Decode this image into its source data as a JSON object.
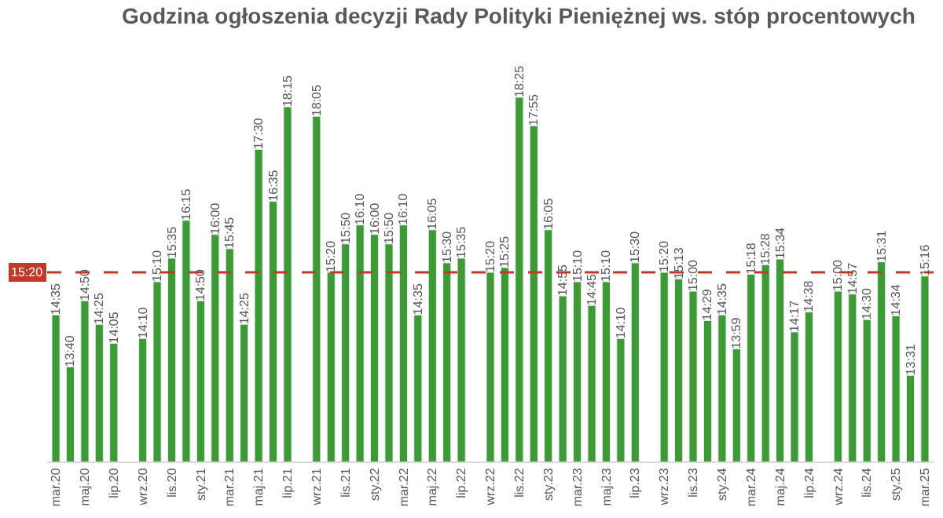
{
  "chart_data": {
    "type": "bar",
    "title": "Godzina ogłoszenia decyzji Rady Polityki Pieniężnej ws. stóp procentowych",
    "categories": [
      "mar.20",
      null,
      "maj.20",
      null,
      "lip.20",
      null,
      "wrz.20",
      null,
      "lis.20",
      null,
      "sty.21",
      null,
      "mar.21",
      null,
      "maj.21",
      null,
      "lip.21",
      null,
      "wrz.21",
      null,
      "lis.21",
      null,
      "sty.22",
      null,
      "mar.22",
      null,
      "maj.22",
      null,
      "lip.22",
      null,
      "wrz.22",
      null,
      "lis.22",
      null,
      "sty.23",
      null,
      "mar.23",
      null,
      "maj.23",
      null,
      "lip.23",
      null,
      "wrz.23",
      null,
      "lis.23",
      null,
      "sty.24",
      null,
      "mar.24",
      null,
      "maj.24",
      null,
      "lip.24",
      null,
      "wrz.24",
      null,
      "lis.24",
      null,
      "sty.25",
      null,
      "mar.25"
    ],
    "values": [
      14.583,
      13.667,
      14.833,
      14.417,
      14.083,
      null,
      14.167,
      15.167,
      15.583,
      16.25,
      14.833,
      16.0,
      15.75,
      14.417,
      17.5,
      16.583,
      18.25,
      null,
      18.083,
      15.333,
      15.833,
      16.167,
      16.0,
      15.833,
      16.167,
      14.583,
      16.083,
      15.5,
      15.583,
      null,
      15.333,
      15.417,
      18.417,
      17.917,
      16.083,
      14.917,
      15.167,
      14.75,
      15.167,
      14.167,
      15.5,
      null,
      15.333,
      15.217,
      15.0,
      14.483,
      14.583,
      13.983,
      15.3,
      15.467,
      15.567,
      14.283,
      14.633,
      null,
      15.0,
      14.95,
      14.5,
      15.517,
      14.567,
      13.517,
      15.267
    ],
    "value_labels": [
      "14:35",
      "13:40",
      "14:50",
      "14:25",
      "14:05",
      null,
      "14:10",
      "15:10",
      "15:35",
      "16:15",
      "14:50",
      "16:00",
      "15:45",
      "14:25",
      "17:30",
      "16:35",
      "18:15",
      null,
      "18:05",
      "15:20",
      "15:50",
      "16:10",
      "16:00",
      "15:50",
      "16:10",
      "14:35",
      "16:05",
      "15:30",
      "15:35",
      null,
      "15:20",
      "15:25",
      "18:25",
      "17:55",
      "16:05",
      "14:55",
      "15:10",
      "14:45",
      "15:10",
      "14:10",
      "15:30",
      null,
      "15:20",
      "15:13",
      "15:00",
      "14:29",
      "14:35",
      "13:59",
      "15:18",
      "15:28",
      "15:34",
      "14:17",
      "14:38",
      null,
      "15:00",
      "14:57",
      "14:30",
      "15:31",
      "14:34",
      "13:31",
      "15:16"
    ],
    "color": "#3d9a35",
    "legend": false,
    "ref_lines": [
      {
        "axis": "y",
        "value": 15.333,
        "label": "15:20",
        "color": "#c0392b",
        "line_style": "dashed"
      }
    ]
  }
}
